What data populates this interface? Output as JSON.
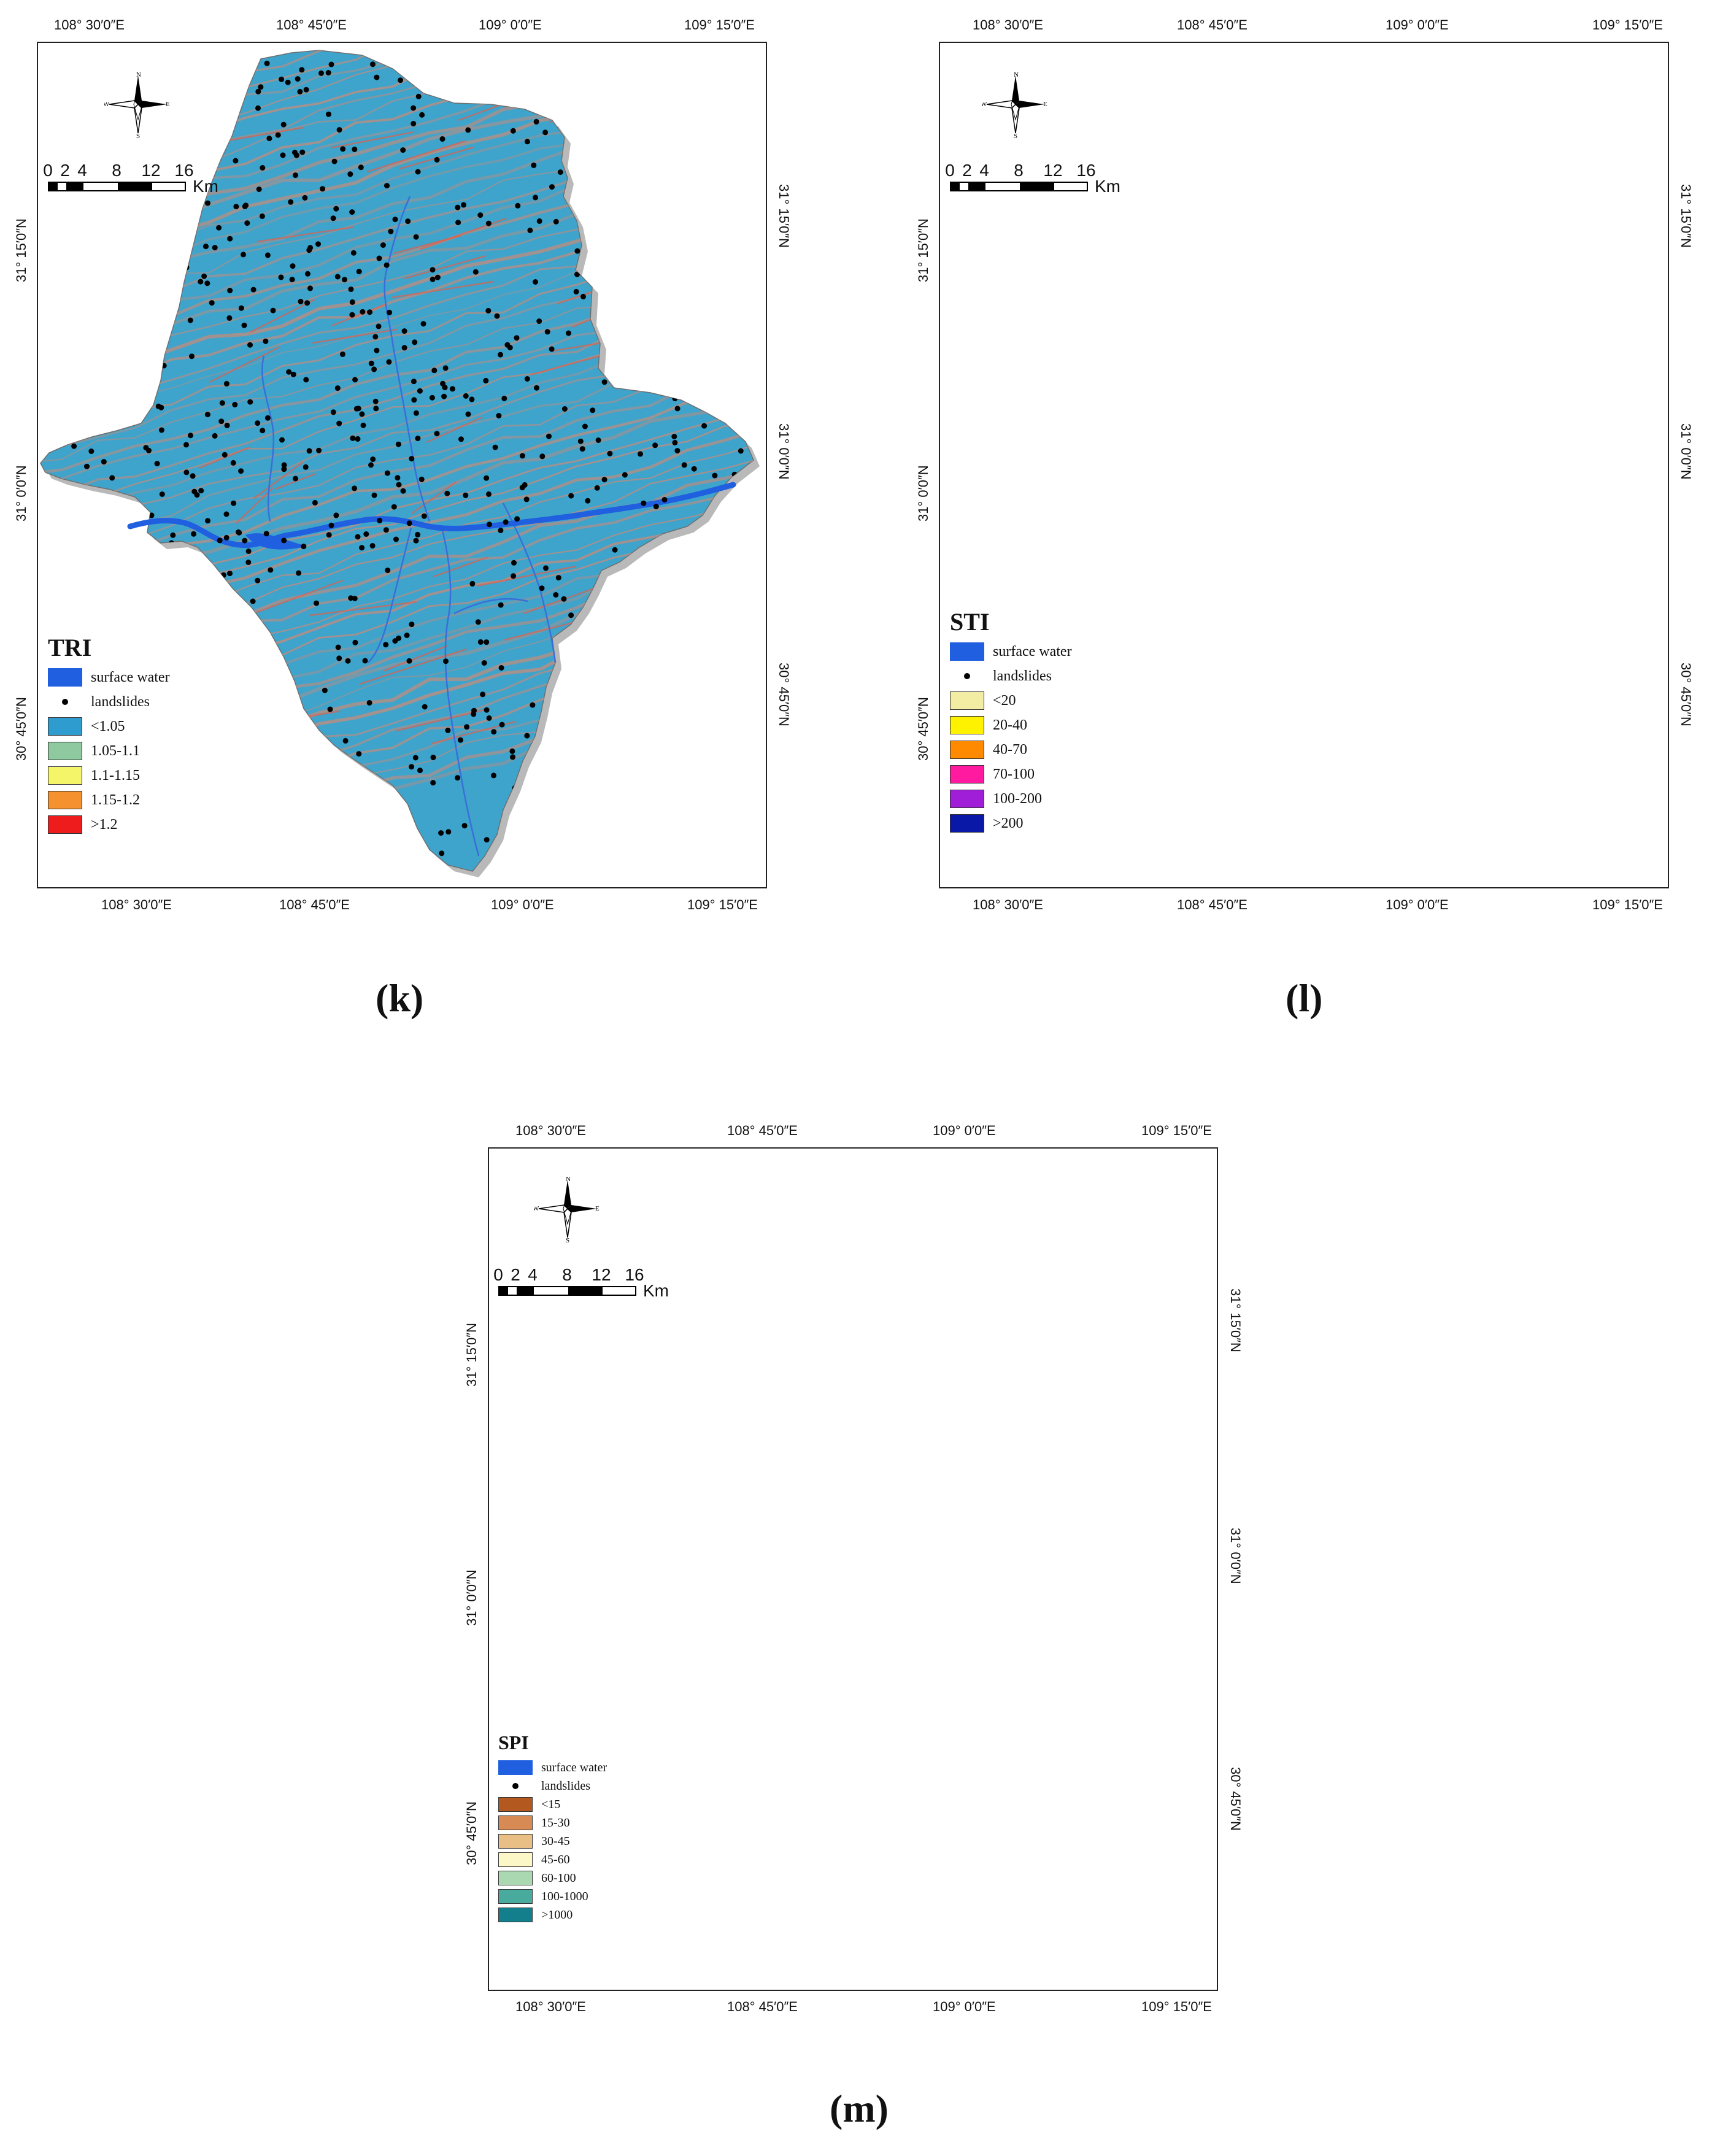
{
  "figure": {
    "common": {
      "lon_labels": [
        "108° 30′0″E",
        "108° 45′0″E",
        "109° 0′0″E",
        "109° 15′0″E"
      ],
      "lat_labels": [
        "31° 15′0″N",
        "31° 0′0″N",
        "30° 45′0″N"
      ],
      "scale": {
        "ticks": [
          "0",
          "2",
          "4",
          "8",
          "12",
          "16"
        ],
        "unit": "Km"
      },
      "compass": {
        "n": "N",
        "s": "S",
        "e": "E",
        "w": "W"
      },
      "legend_common": {
        "surface_water": "surface water",
        "landslides": "landslides"
      },
      "colors": {
        "surface_water": "#1f5fe0",
        "landslide": "#000000",
        "river": "#3a6ed8"
      }
    },
    "panels": [
      {
        "id": "k",
        "label": "(k)",
        "legend_title": "TRI",
        "classes": [
          {
            "label": "<1.05",
            "color": "#2e9ccf"
          },
          {
            "label": "1.05-1.1",
            "color": "#8ec9a0"
          },
          {
            "label": "1.1-1.15",
            "color": "#f5f56a"
          },
          {
            "label": "1.15-1.2",
            "color": "#f5922f"
          },
          {
            "label": ">1.2",
            "color": "#ee1c1c"
          }
        ],
        "map_fill": "#3ea4cc",
        "ridge_color": "#c98a78"
      },
      {
        "id": "l",
        "label": "(l)",
        "legend_title": "STI",
        "classes": [
          {
            "label": "<20",
            "color": "#f3eda4"
          },
          {
            "label": "20-40",
            "color": "#fff200"
          },
          {
            "label": "40-70",
            "color": "#ff8a00"
          },
          {
            "label": "70-100",
            "color": "#ff1aa0"
          },
          {
            "label": "100-200",
            "color": "#a01ed8"
          },
          {
            "label": ">200",
            "color": "#0a18a8"
          }
        ],
        "map_fill": "#ebe5b6",
        "ridge_color": "#b8a987"
      },
      {
        "id": "m",
        "label": "(m)",
        "legend_title": "SPI",
        "classes": [
          {
            "label": "<15",
            "color": "#b3581e"
          },
          {
            "label": "15-30",
            "color": "#d88a55"
          },
          {
            "label": "30-45",
            "color": "#e9bf86"
          },
          {
            "label": "45-60",
            "color": "#fbf7c6"
          },
          {
            "label": "60-100",
            "color": "#a9d8b1"
          },
          {
            "label": "100-1000",
            "color": "#49ab9e"
          },
          {
            "label": ">1000",
            "color": "#137f8d"
          }
        ],
        "map_fill": "#bd8a6c",
        "ridge_color": "#8d6046"
      }
    ]
  }
}
